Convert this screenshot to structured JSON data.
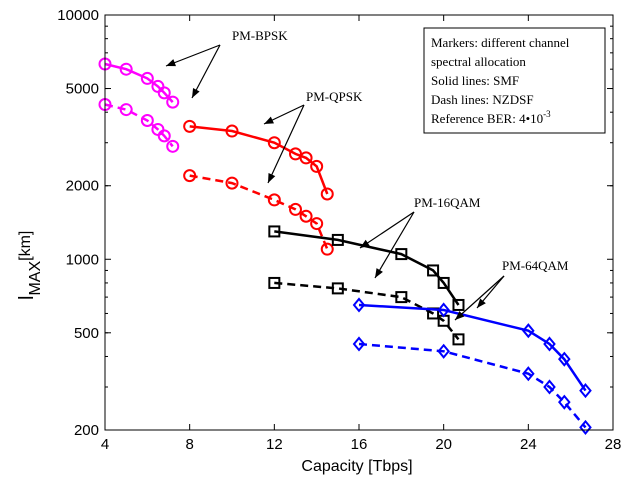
{
  "chart_data": {
    "type": "line",
    "xlabel": "Capacity  [Tbps]",
    "ylabel_main": "l",
    "ylabel_sub": "MAX",
    "ylabel_unit": "[km]",
    "xlim": [
      4,
      28
    ],
    "ylim": [
      200,
      10000
    ],
    "yscale": "log",
    "grid": false,
    "x_ticks": [
      4,
      8,
      12,
      16,
      20,
      24,
      28
    ],
    "y_ticks": [
      200,
      500,
      1000,
      2000,
      5000,
      10000
    ],
    "legend_box": {
      "lines": [
        "Markers: different channel",
        "spectral allocation",
        "Solid lines: SMF",
        "Dash lines: NZDSF",
        "Reference BER:  4•10"
      ],
      "ber_exponent": "-3"
    },
    "annotations": [
      "PM-BPSK",
      "PM-QPSK",
      "PM-16QAM",
      "PM-64QAM"
    ],
    "series": [
      {
        "format": "PM-BPSK",
        "fiber": "SMF",
        "color": "#ff00ff",
        "marker": "circle",
        "dash": false,
        "x": [
          4.0,
          5.0,
          6.0,
          6.5,
          6.8,
          7.2
        ],
        "y": [
          6300,
          6000,
          5500,
          5100,
          4800,
          4400
        ]
      },
      {
        "format": "PM-BPSK",
        "fiber": "NZDSF",
        "color": "#ff00ff",
        "marker": "circle",
        "dash": true,
        "x": [
          4.0,
          5.0,
          6.0,
          6.5,
          6.8,
          7.2
        ],
        "y": [
          4300,
          4100,
          3700,
          3400,
          3200,
          2900
        ]
      },
      {
        "format": "PM-QPSK",
        "fiber": "SMF",
        "color": "#ff0000",
        "marker": "circle",
        "dash": false,
        "x": [
          8.0,
          10.0,
          12.0,
          13.0,
          13.5,
          14.0,
          14.5
        ],
        "y": [
          3500,
          3350,
          3000,
          2700,
          2600,
          2400,
          1850
        ]
      },
      {
        "format": "PM-QPSK",
        "fiber": "NZDSF",
        "color": "#ff0000",
        "marker": "circle",
        "dash": true,
        "x": [
          8.0,
          10.0,
          12.0,
          13.0,
          13.5,
          14.0,
          14.5
        ],
        "y": [
          2200,
          2050,
          1750,
          1600,
          1500,
          1400,
          1100
        ]
      },
      {
        "format": "PM-16QAM",
        "fiber": "SMF",
        "color": "#000000",
        "marker": "square",
        "dash": false,
        "x": [
          12.0,
          15.0,
          18.0,
          19.5,
          20.0,
          20.7
        ],
        "y": [
          1300,
          1200,
          1050,
          900,
          800,
          650
        ]
      },
      {
        "format": "PM-16QAM",
        "fiber": "NZDSF",
        "color": "#000000",
        "marker": "square",
        "dash": true,
        "x": [
          12.0,
          15.0,
          18.0,
          19.5,
          20.0,
          20.7
        ],
        "y": [
          800,
          760,
          700,
          600,
          560,
          470
        ]
      },
      {
        "format": "PM-64QAM",
        "fiber": "SMF",
        "color": "#0000ff",
        "marker": "diamond",
        "dash": false,
        "x": [
          16.0,
          20.0,
          24.0,
          25.0,
          25.7,
          26.7
        ],
        "y": [
          650,
          620,
          510,
          450,
          390,
          290
        ]
      },
      {
        "format": "PM-64QAM",
        "fiber": "NZDSF",
        "color": "#0000ff",
        "marker": "diamond",
        "dash": true,
        "x": [
          16.0,
          20.0,
          24.0,
          25.0,
          25.7,
          26.7
        ],
        "y": [
          450,
          420,
          340,
          300,
          260,
          205
        ]
      }
    ]
  }
}
